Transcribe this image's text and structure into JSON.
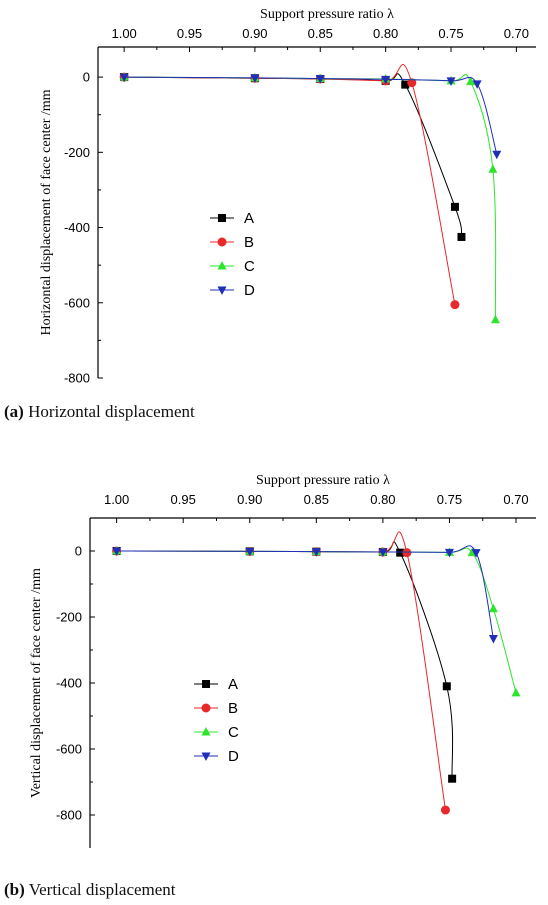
{
  "chart_data": [
    {
      "type": "line",
      "caption_label": "(a)",
      "caption_text": "Horizontal displacement",
      "xlabel": "Support pressure ratio λ",
      "ylabel": "Horizontal displacement of face center /mm",
      "xlim": [
        1.02,
        0.685
      ],
      "ylim": [
        -800,
        80
      ],
      "xticks": [
        1.0,
        0.95,
        0.9,
        0.85,
        0.8,
        0.75,
        0.7
      ],
      "xtick_labels": [
        "1.00",
        "0.95",
        "0.90",
        "0.85",
        "0.80",
        "0.75",
        "0.70"
      ],
      "yticks": [
        0,
        -200,
        -400,
        -600,
        -800
      ],
      "ytick_labels": [
        "0",
        "-200",
        "-400",
        "-600",
        "-800"
      ],
      "legend_position": "center-left",
      "series": [
        {
          "name": "A",
          "color": "#000000",
          "marker": "square",
          "x": [
            1.0,
            0.9,
            0.85,
            0.8,
            0.785,
            0.747,
            0.742
          ],
          "y": [
            0,
            -3,
            -5,
            -10,
            -20,
            -345,
            -425
          ]
        },
        {
          "name": "B",
          "color": "#e8282a",
          "marker": "circle",
          "x": [
            1.0,
            0.9,
            0.85,
            0.8,
            0.78,
            0.747
          ],
          "y": [
            0,
            -3,
            -5,
            -10,
            -15,
            -605
          ]
        },
        {
          "name": "C",
          "color": "#2ee52e",
          "marker": "triangle-up",
          "x": [
            1.0,
            0.9,
            0.85,
            0.8,
            0.75,
            0.735,
            0.718,
            0.716
          ],
          "y": [
            0,
            -2,
            -4,
            -5,
            -10,
            -12,
            -245,
            -645
          ]
        },
        {
          "name": "D",
          "color": "#1f2fb8",
          "marker": "triangle-down",
          "x": [
            1.0,
            0.9,
            0.85,
            0.8,
            0.75,
            0.73,
            0.715
          ],
          "y": [
            0,
            -2,
            -4,
            -6,
            -10,
            -18,
            -205
          ]
        }
      ]
    },
    {
      "type": "line",
      "caption_label": "(b)",
      "caption_text": "Vertical displacement",
      "xlabel": "Support pressure ratio λ",
      "ylabel": "Vertical displacement of face center /mm",
      "xlim": [
        1.02,
        0.685
      ],
      "ylim": [
        -900,
        100
      ],
      "xticks": [
        1.0,
        0.95,
        0.9,
        0.85,
        0.8,
        0.75,
        0.7
      ],
      "xtick_labels": [
        "1.00",
        "0.95",
        "0.90",
        "0.85",
        "0.80",
        "0.75",
        "0.70"
      ],
      "yticks": [
        0,
        -200,
        -400,
        -600,
        -800
      ],
      "ytick_labels": [
        "0",
        "-200",
        "-400",
        "-600",
        "-800"
      ],
      "legend_position": "center-left",
      "series": [
        {
          "name": "A",
          "color": "#000000",
          "marker": "square",
          "x": [
            1.0,
            0.9,
            0.85,
            0.8,
            0.787,
            0.752,
            0.748
          ],
          "y": [
            0,
            -1,
            -2,
            -3,
            -5,
            -410,
            -690
          ]
        },
        {
          "name": "B",
          "color": "#e8282a",
          "marker": "circle",
          "x": [
            1.0,
            0.9,
            0.85,
            0.8,
            0.782,
            0.753
          ],
          "y": [
            0,
            -1,
            -2,
            -3,
            -5,
            -785
          ]
        },
        {
          "name": "C",
          "color": "#2ee52e",
          "marker": "triangle-up",
          "x": [
            1.0,
            0.9,
            0.85,
            0.8,
            0.75,
            0.733,
            0.717,
            0.7
          ],
          "y": [
            0,
            -1,
            -2,
            -3,
            -4,
            -5,
            -175,
            -430
          ]
        },
        {
          "name": "D",
          "color": "#1f2fb8",
          "marker": "triangle-down",
          "x": [
            1.0,
            0.9,
            0.85,
            0.8,
            0.75,
            0.73,
            0.717
          ],
          "y": [
            0,
            -1,
            -2,
            -3,
            -4,
            -5,
            -265
          ]
        }
      ]
    }
  ]
}
